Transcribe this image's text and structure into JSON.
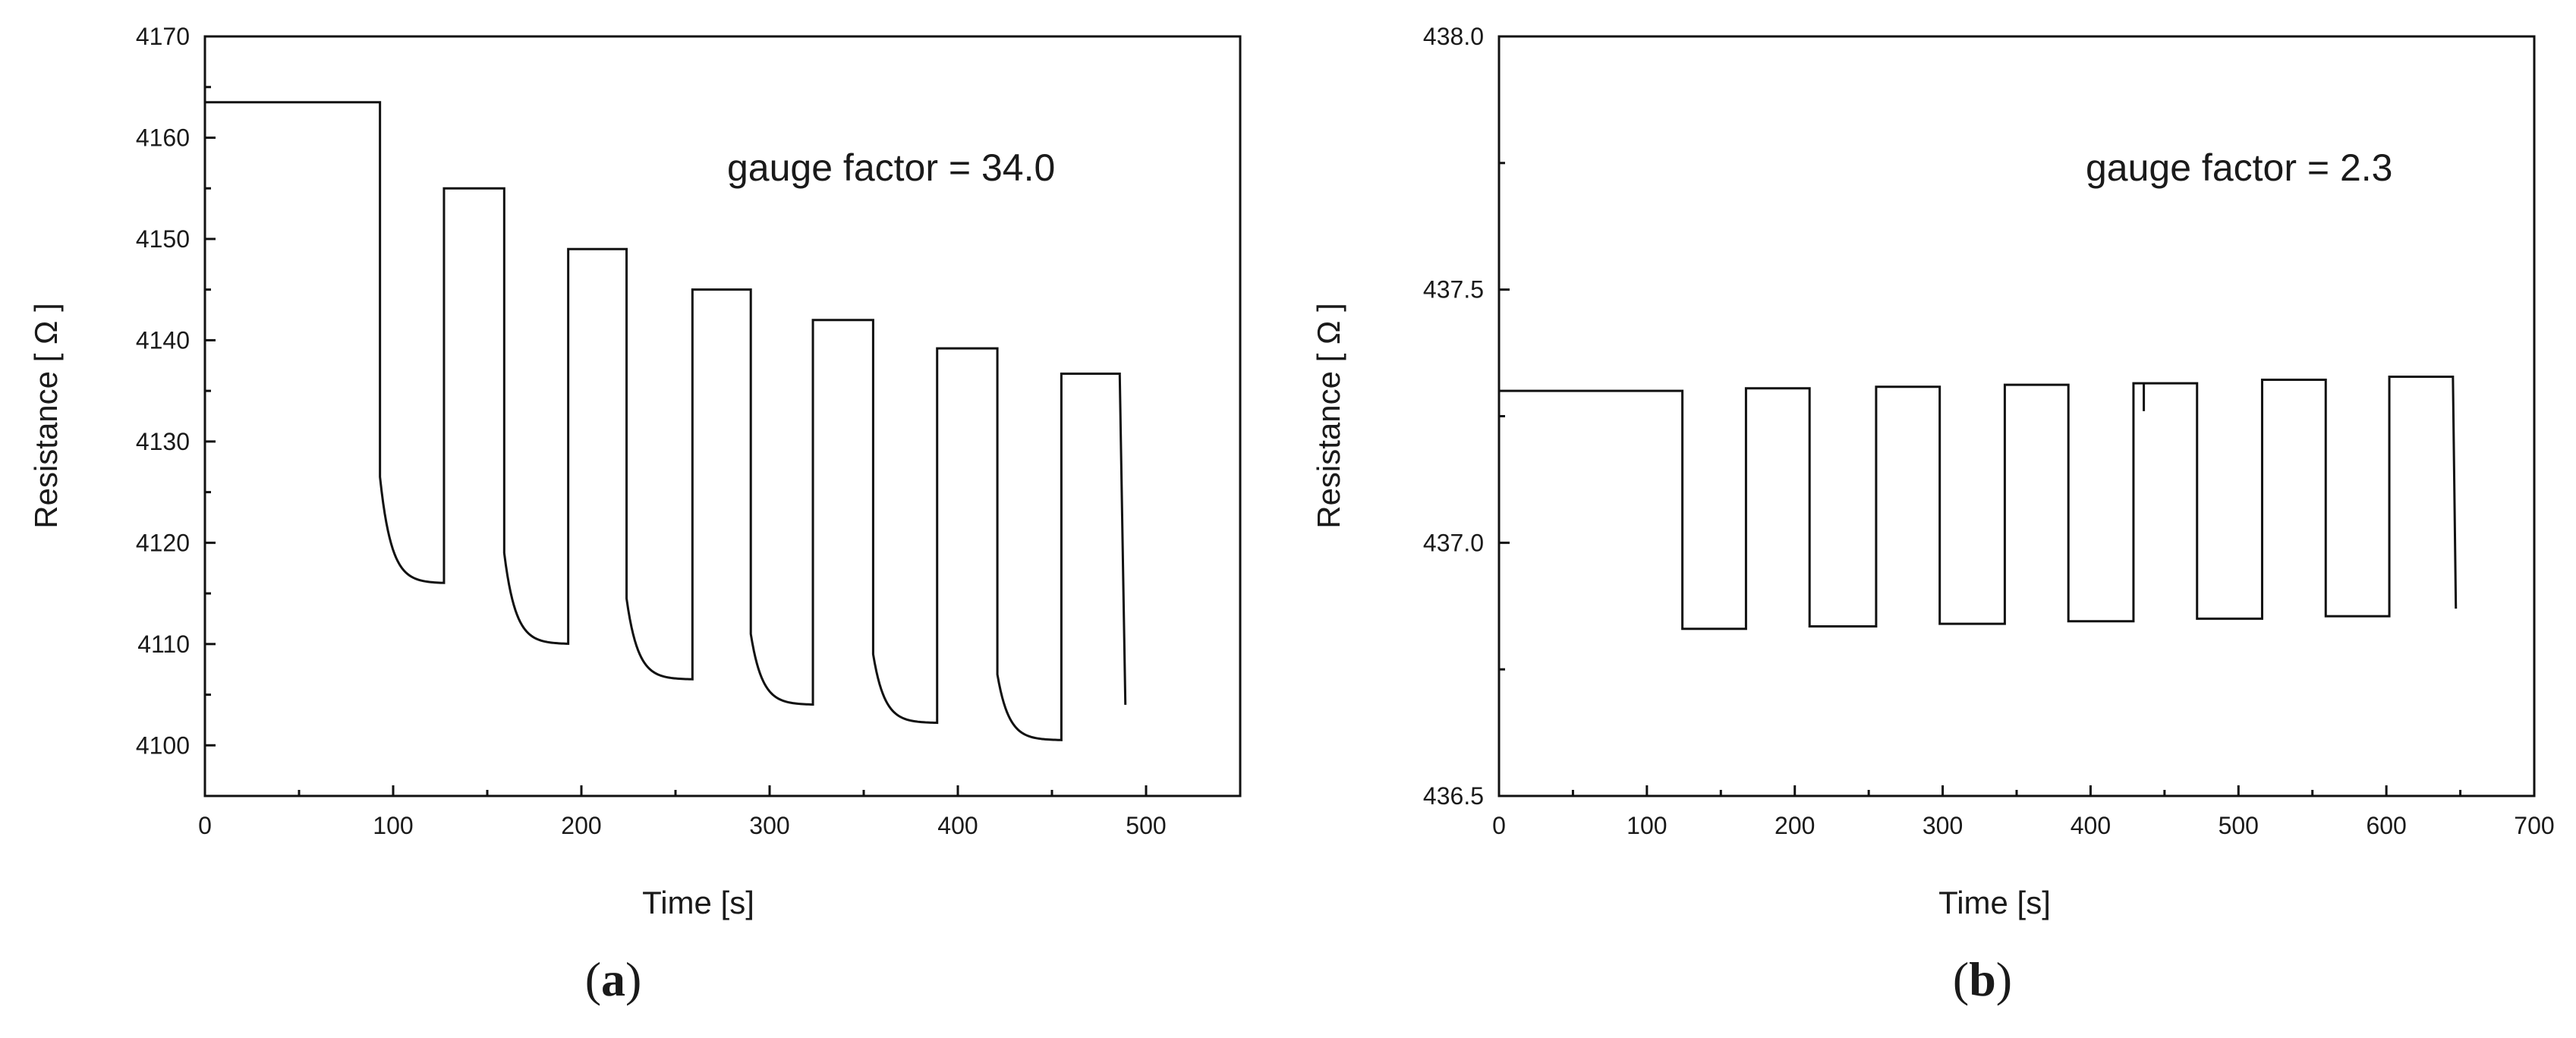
{
  "chart_data": [
    {
      "type": "line",
      "panel_label": "a",
      "annotation": "gauge factor = 34.0",
      "xlabel": "Time [s]",
      "ylabel": "Resistance [ Ω ]",
      "xlim": [
        0,
        550
      ],
      "ylim": [
        4095,
        4170
      ],
      "xticks": [
        0,
        100,
        200,
        300,
        400,
        500
      ],
      "yticks": [
        4100,
        4110,
        4120,
        4130,
        4140,
        4150,
        4160,
        4170
      ],
      "grid": false,
      "relaxation_tau": 6,
      "series": [
        {
          "on_segments": [
            {
              "t_start": 0,
              "t_end": 93,
              "resistance": 4163.5
            },
            {
              "t_start": 127,
              "t_end": 159,
              "resistance": 4155.0
            },
            {
              "t_start": 193,
              "t_end": 224,
              "resistance": 4149.0
            },
            {
              "t_start": 259,
              "t_end": 290,
              "resistance": 4145.0
            },
            {
              "t_start": 323,
              "t_end": 355,
              "resistance": 4142.0
            },
            {
              "t_start": 389,
              "t_end": 421,
              "resistance": 4139.2
            },
            {
              "t_start": 455,
              "t_end": 486,
              "resistance": 4136.7
            }
          ],
          "off_segments": [
            {
              "t_start": 93,
              "t_end": 127,
              "r_initial": 4126.5,
              "r_final": 4116.0
            },
            {
              "t_start": 159,
              "t_end": 193,
              "r_initial": 4119.0,
              "r_final": 4110.0
            },
            {
              "t_start": 224,
              "t_end": 259,
              "r_initial": 4114.5,
              "r_final": 4106.5
            },
            {
              "t_start": 290,
              "t_end": 323,
              "r_initial": 4111.0,
              "r_final": 4104.0
            },
            {
              "t_start": 355,
              "t_end": 389,
              "r_initial": 4109.0,
              "r_final": 4102.2
            },
            {
              "t_start": 421,
              "t_end": 455,
              "r_initial": 4107.0,
              "r_final": 4100.5
            }
          ],
          "end_point": {
            "t": 489,
            "resistance": 4104.0
          }
        }
      ]
    },
    {
      "type": "line",
      "panel_label": "b",
      "annotation": "gauge factor = 2.3",
      "xlabel": "Time [s]",
      "ylabel": "Resistance [ Ω ]",
      "xlim": [
        0,
        700
      ],
      "ylim": [
        436.5,
        438.0
      ],
      "xticks": [
        0,
        100,
        200,
        300,
        400,
        500,
        600,
        700
      ],
      "yticks": [
        436.5,
        437.0,
        437.5,
        438.0
      ],
      "yticks_text": [
        "436.5",
        "437.0",
        "437.5",
        "438.0"
      ],
      "grid": false,
      "series": [
        {
          "on_segments": [
            {
              "t_start": 0,
              "t_end": 124,
              "resistance": 437.3
            },
            {
              "t_start": 167,
              "t_end": 210,
              "resistance": 437.305
            },
            {
              "t_start": 255,
              "t_end": 298,
              "resistance": 437.308
            },
            {
              "t_start": 342,
              "t_end": 385,
              "resistance": 437.312
            },
            {
              "t_start": 429,
              "t_end": 472,
              "resistance": 437.315
            },
            {
              "t_start": 516,
              "t_end": 559,
              "resistance": 437.322
            },
            {
              "t_start": 602,
              "t_end": 645,
              "resistance": 437.328
            }
          ],
          "off_segments": [
            {
              "t_start": 124,
              "t_end": 167,
              "resistance": 436.83
            },
            {
              "t_start": 210,
              "t_end": 255,
              "resistance": 436.835
            },
            {
              "t_start": 298,
              "t_end": 342,
              "resistance": 436.84
            },
            {
              "t_start": 385,
              "t_end": 429,
              "resistance": 436.845
            },
            {
              "t_start": 472,
              "t_end": 516,
              "resistance": 436.85
            },
            {
              "t_start": 559,
              "t_end": 602,
              "resistance": 436.855
            }
          ],
          "spike": {
            "t": 436,
            "resistance": 437.26
          },
          "end_point": {
            "t": 647,
            "resistance": 436.87
          }
        }
      ]
    }
  ]
}
